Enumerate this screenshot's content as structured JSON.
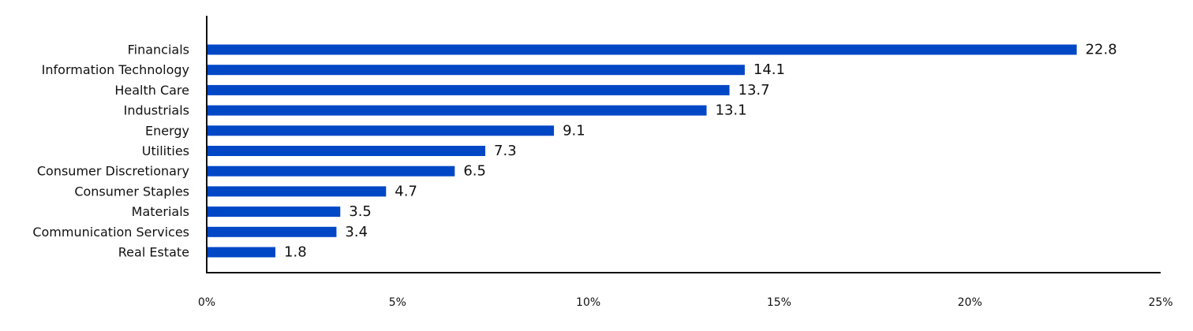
{
  "chart_data": {
    "type": "bar",
    "orientation": "horizontal",
    "categories": [
      "Financials",
      "Information Technology",
      "Health Care",
      "Industrials",
      "Energy",
      "Utilities",
      "Consumer Discretionary",
      "Consumer Staples",
      "Materials",
      "Communication Services",
      "Real Estate"
    ],
    "values": [
      22.8,
      14.1,
      13.7,
      13.1,
      9.1,
      7.3,
      6.5,
      4.7,
      3.5,
      3.4,
      1.8
    ],
    "value_labels": [
      "22.8",
      "14.1",
      "13.7",
      "13.1",
      "9.1",
      "7.3",
      "6.5",
      "4.7",
      "3.5",
      "3.4",
      "1.8"
    ],
    "xlim": [
      0,
      25
    ],
    "x_ticks": [
      0,
      5,
      10,
      15,
      20,
      25
    ],
    "x_tick_labels": [
      "0%",
      "5%",
      "10%",
      "15%",
      "20%",
      "25%"
    ],
    "title": "",
    "xlabel": "",
    "ylabel": "",
    "grid": false,
    "legend": "none",
    "bar_color": "#0047C6",
    "axis_color": "#111111"
  }
}
